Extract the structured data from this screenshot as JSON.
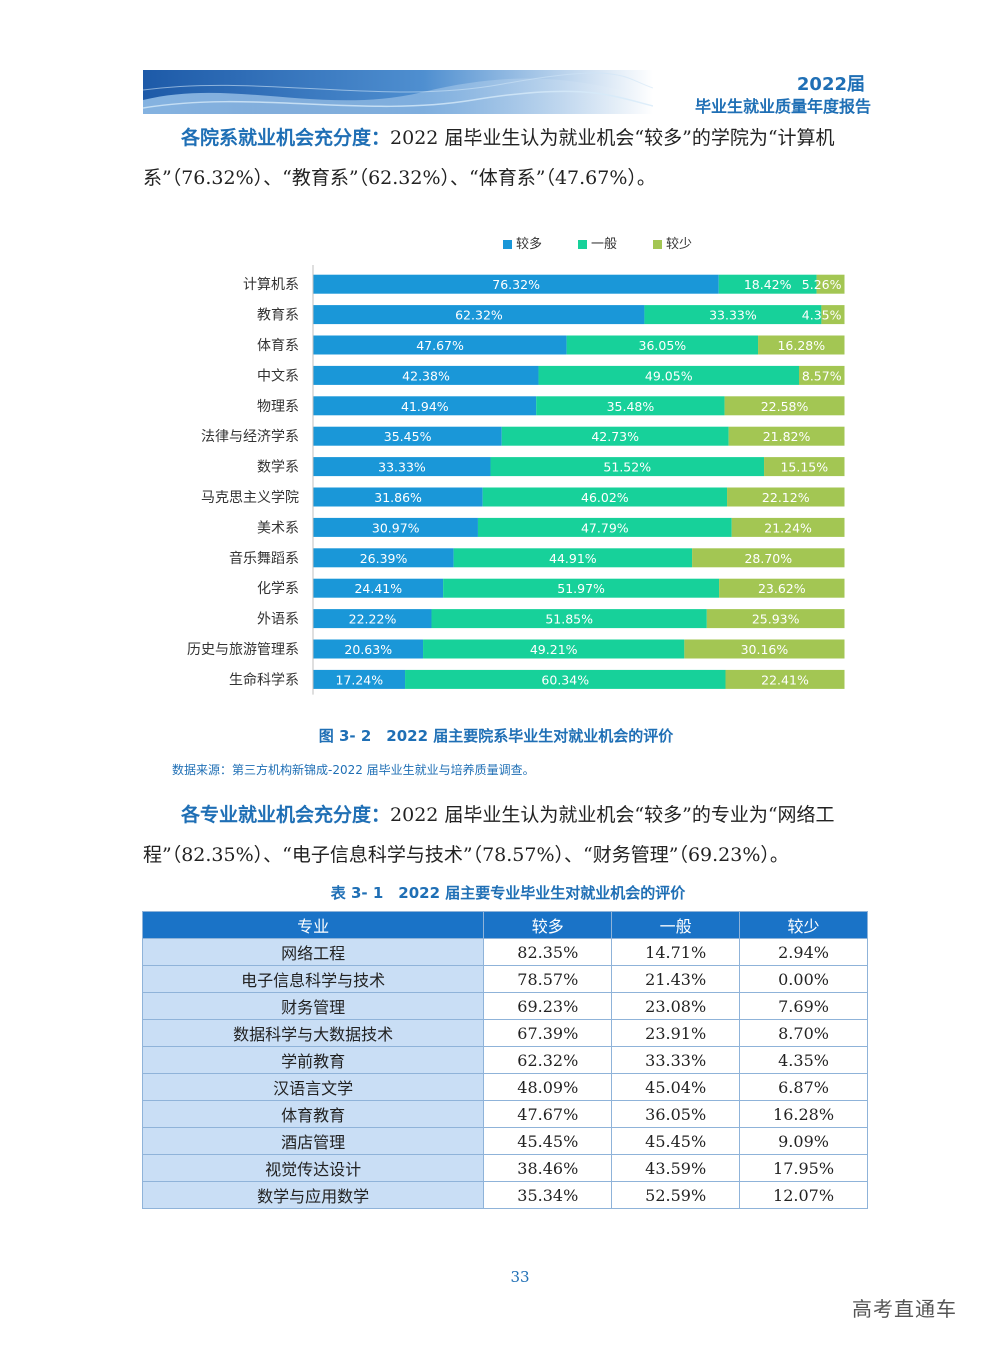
{
  "header": {
    "year": "2022届",
    "title": "毕业生就业质量年度报告"
  },
  "para1": {
    "lead": "各院系就业机会充分度：",
    "text": "2022 届毕业生认为就业机会“较多”的学院为“计算机系”（76.32%）、“教育系”（62.32%）、“体育系”（47.67%）。"
  },
  "chart_data": {
    "type": "bar",
    "orientation": "horizontal",
    "stacked": "percent",
    "legend_position": "top",
    "categories": [
      "计算机系",
      "教育系",
      "体育系",
      "中文系",
      "物理系",
      "法律与经济学系",
      "数学系",
      "马克思主义学院",
      "美术系",
      "音乐舞蹈系",
      "化学系",
      "外语系",
      "历史与旅游管理系",
      "生命科学系"
    ],
    "series": [
      {
        "name": "较多",
        "color": "#1a97d8",
        "values": [
          76.32,
          62.32,
          47.67,
          42.38,
          41.94,
          35.45,
          33.33,
          31.86,
          30.97,
          26.39,
          24.41,
          22.22,
          20.63,
          17.24
        ]
      },
      {
        "name": "一般",
        "color": "#17d19a",
        "values": [
          18.42,
          33.33,
          36.05,
          49.05,
          35.48,
          42.73,
          51.52,
          46.02,
          47.79,
          44.91,
          51.97,
          51.85,
          49.21,
          60.34
        ]
      },
      {
        "name": "较少",
        "color": "#a3c653",
        "values": [
          5.26,
          4.35,
          16.28,
          8.57,
          22.58,
          21.82,
          15.15,
          22.12,
          21.24,
          28.7,
          23.62,
          25.93,
          30.16,
          22.41
        ]
      }
    ],
    "labels": [
      [
        "76.32%",
        "18.42%",
        "5.26%"
      ],
      [
        "62.32%",
        "33.33%",
        "4.35%"
      ],
      [
        "47.67%",
        "36.05%",
        "16.28%"
      ],
      [
        "42.38%",
        "49.05%",
        "8.57%"
      ],
      [
        "41.94%",
        "35.48%",
        "22.58%"
      ],
      [
        "35.45%",
        "42.73%",
        "21.82%"
      ],
      [
        "33.33%",
        "51.52%",
        "15.15%"
      ],
      [
        "31.86%",
        "46.02%",
        "22.12%"
      ],
      [
        "30.97%",
        "47.79%",
        "21.24%"
      ],
      [
        "26.39%",
        "44.91%",
        "28.70%"
      ],
      [
        "24.41%",
        "51.97%",
        "23.62%"
      ],
      [
        "22.22%",
        "51.85%",
        "25.93%"
      ],
      [
        "20.63%",
        "49.21%",
        "30.16%"
      ],
      [
        "17.24%",
        "60.34%",
        "22.41%"
      ]
    ]
  },
  "figure": {
    "caption": "图 3- 2　2022 届主要院系毕业生对就业机会的评价",
    "source": "数据来源：第三方机构新锦成-2022 届毕业生就业与培养质量调查。"
  },
  "para2": {
    "lead": "各专业就业机会充分度：",
    "text": "2022 届毕业生认为就业机会“较多”的专业为“网络工程”（82.35%）、“电子信息科学与技术”（78.57%）、“财务管理”（69.23%）。"
  },
  "table": {
    "caption": "表 3- 1　2022 届主要专业毕业生对就业机会的评价",
    "headers": [
      "专业",
      "较多",
      "一般",
      "较少"
    ],
    "rows": [
      [
        "网络工程",
        "82.35%",
        "14.71%",
        "2.94%"
      ],
      [
        "电子信息科学与技术",
        "78.57%",
        "21.43%",
        "0.00%"
      ],
      [
        "财务管理",
        "69.23%",
        "23.08%",
        "7.69%"
      ],
      [
        "数据科学与大数据技术",
        "67.39%",
        "23.91%",
        "8.70%"
      ],
      [
        "学前教育",
        "62.32%",
        "33.33%",
        "4.35%"
      ],
      [
        "汉语言文学",
        "48.09%",
        "45.04%",
        "6.87%"
      ],
      [
        "体育教育",
        "47.67%",
        "36.05%",
        "16.28%"
      ],
      [
        "酒店管理",
        "45.45%",
        "45.45%",
        "9.09%"
      ],
      [
        "视觉传达设计",
        "38.46%",
        "43.59%",
        "17.95%"
      ],
      [
        "数学与应用数学",
        "35.34%",
        "52.59%",
        "12.07%"
      ]
    ]
  },
  "footer": {
    "page_number": "33",
    "watermark": "高考直通车"
  }
}
